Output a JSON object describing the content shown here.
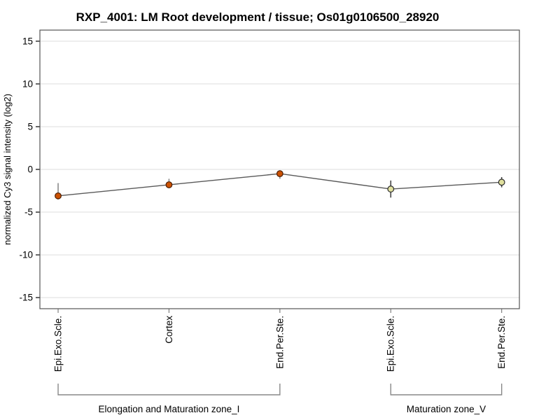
{
  "chart_data": {
    "type": "line",
    "title": "RXP_4001: LM Root development / tissue; Os01g0106500_28920",
    "ylabel": "normalized Cy3 signal intensity (log2)",
    "ylim": [
      -16.3,
      16.3
    ],
    "yticks": [
      15,
      10,
      5,
      0,
      -5,
      -10,
      -15
    ],
    "grid": true,
    "legend": "none",
    "background": "#ffffff",
    "gridline_color": "#dedede",
    "box_color": "#555555",
    "line_color": "#5a5a5a",
    "tick_color": "#000000",
    "x_tick_color": "#808080",
    "bracket_color": "#888888",
    "groups": [
      {
        "label": "Elongation and Maturation zone_I",
        "marker_fill": "#cc5202",
        "marker_stroke": "#4a1c00",
        "error_color": "#8a8a8a",
        "points": [
          {
            "category": "Epi.Exo.Scle.",
            "value": -3.1,
            "err_high": -1.6,
            "err_low": -3.5
          },
          {
            "category": "Cortex",
            "value": -1.8,
            "err_high": -1.1,
            "err_low": -2.2
          },
          {
            "category": "End.Per.Ste.",
            "value": -0.5,
            "err_high": -0.1,
            "err_low": -1.1
          }
        ]
      },
      {
        "label": "Maturation zone_V",
        "marker_fill": "#e0e09e",
        "marker_stroke": "#2b2b2b",
        "error_color": "#444444",
        "points": [
          {
            "category": "Epi.Exo.Scle.",
            "value": -2.3,
            "err_high": -1.3,
            "err_low": -3.3
          },
          {
            "category": "End.Per.Ste.",
            "value": -1.5,
            "err_high": -0.9,
            "err_low": -2.1
          }
        ]
      }
    ]
  }
}
